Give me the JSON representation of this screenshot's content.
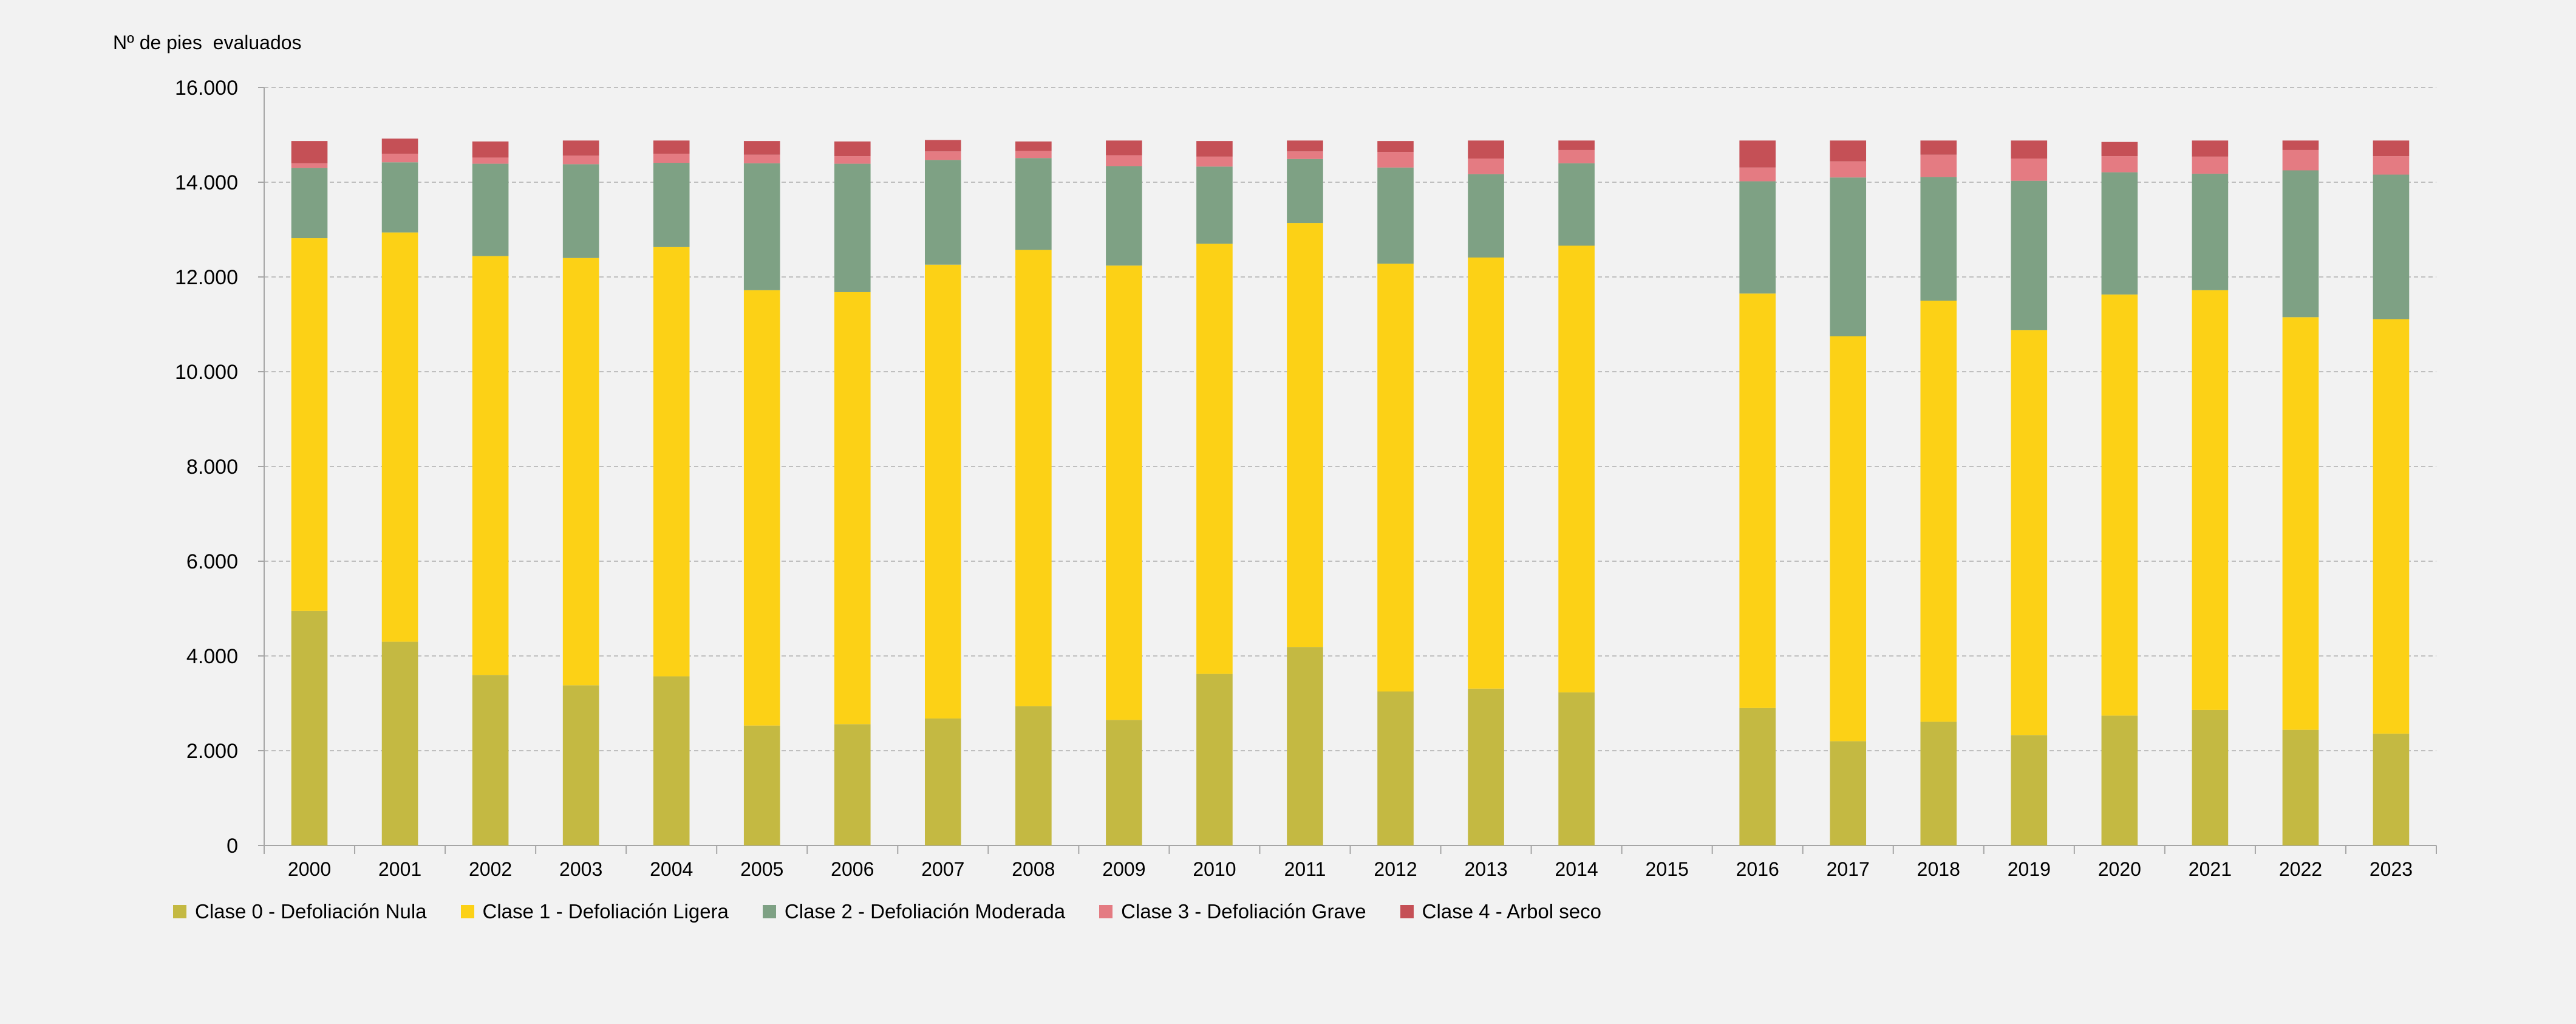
{
  "chart_data": {
    "type": "bar",
    "stacked": true,
    "title": "",
    "ylabel": "Nº de pies  evaluados",
    "xlabel": "",
    "ylim": [
      0,
      16000
    ],
    "yticks": [
      0,
      2000,
      4000,
      6000,
      8000,
      10000,
      12000,
      14000,
      16000
    ],
    "ytick_labels": [
      "0",
      "2.000",
      "4.000",
      "6.000",
      "8.000",
      "10.000",
      "12.000",
      "14.000",
      "16.000"
    ],
    "grid": true,
    "legend_position": "bottom-left",
    "categories": [
      "2000",
      "2001",
      "2002",
      "2003",
      "2004",
      "2005",
      "2006",
      "2007",
      "2008",
      "2009",
      "2010",
      "2011",
      "2012",
      "2013",
      "2014",
      "2015",
      "2016",
      "2017",
      "2018",
      "2019",
      "2020",
      "2021",
      "2022",
      "2023"
    ],
    "series": [
      {
        "name": "Clase 0 - Defoliación Nula",
        "color": "#c4b942",
        "values": [
          4950,
          4300,
          3600,
          3380,
          3570,
          2530,
          2560,
          2680,
          2940,
          2650,
          3620,
          4190,
          3250,
          3310,
          3230,
          0,
          2900,
          2200,
          2610,
          2330,
          2740,
          2860,
          2440,
          2360
        ]
      },
      {
        "name": "Clase 1 - Defoliación Ligera",
        "color": "#fcd116",
        "values": [
          7870,
          8640,
          8840,
          9020,
          9060,
          9190,
          9120,
          9580,
          9630,
          9590,
          9080,
          8950,
          9030,
          9100,
          9430,
          0,
          8750,
          8550,
          8890,
          8550,
          8890,
          8860,
          8710,
          8750
        ]
      },
      {
        "name": "Clase 2 - Defoliación Moderada",
        "color": "#7ea184",
        "values": [
          1480,
          1480,
          1950,
          1980,
          1780,
          2680,
          2710,
          2210,
          1940,
          2100,
          1630,
          1350,
          2030,
          1760,
          1740,
          0,
          2370,
          3350,
          2610,
          3150,
          2580,
          2460,
          3100,
          3050
        ]
      },
      {
        "name": "Clase 3 - Defoliación Grave",
        "color": "#e47b82",
        "values": [
          100,
          180,
          130,
          180,
          190,
          180,
          160,
          180,
          150,
          230,
          210,
          160,
          330,
          330,
          280,
          0,
          290,
          340,
          470,
          470,
          340,
          360,
          430,
          390
        ]
      },
      {
        "name": "Clase 4 - Arbol seco",
        "color": "#c55056",
        "values": [
          470,
          320,
          340,
          320,
          280,
          290,
          310,
          240,
          200,
          310,
          330,
          230,
          230,
          380,
          200,
          0,
          570,
          440,
          300,
          380,
          300,
          340,
          200,
          330
        ]
      }
    ]
  }
}
